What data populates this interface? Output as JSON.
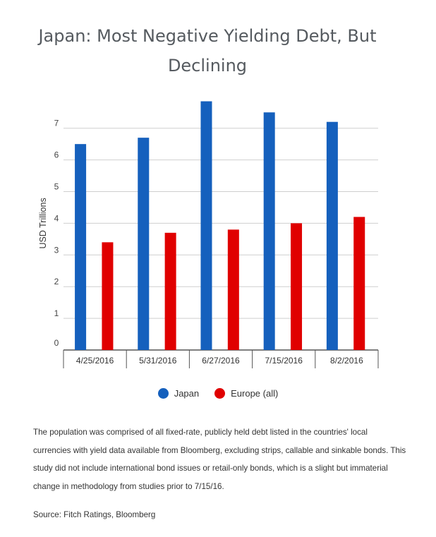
{
  "chart_data": {
    "type": "bar",
    "title": "Japan: Most Negative Yielding Debt, But Declining",
    "title_lines": [
      "Japan: Most Negative Yielding Debt, But",
      "Declining"
    ],
    "ylabel": "USD Trillions",
    "xlabel": "",
    "ylim": [
      0,
      7.5
    ],
    "yticks": [
      0,
      1,
      2,
      3,
      4,
      5,
      6,
      7
    ],
    "categories": [
      "4/25/2016",
      "5/31/2016",
      "6/27/2016",
      "7/15/2016",
      "8/2/2016"
    ],
    "series": [
      {
        "name": "Japan",
        "color": "#1560bd",
        "values": [
          6.5,
          6.7,
          7.85,
          7.5,
          7.2
        ]
      },
      {
        "name": "Europe (all)",
        "color": "#e00000",
        "values": [
          3.4,
          3.7,
          3.8,
          4.0,
          4.2
        ]
      }
    ],
    "grid": true,
    "legend_position": "bottom-center"
  },
  "legend": {
    "japan": "Japan",
    "europe": "Europe (all)",
    "japan_color": "#1560bd",
    "europe_color": "#e00000"
  },
  "footnote": "The population was comprised of all fixed-rate, publicly held debt listed in the countries' local currencies with yield data available from Bloomberg, excluding strips, callable and sinkable bonds. This study did not include international bond issues or retail-only bonds, which is a slight but immaterial change in methodology from studies prior to 7/15/16.",
  "source": "Source: Fitch Ratings, Bloomberg"
}
